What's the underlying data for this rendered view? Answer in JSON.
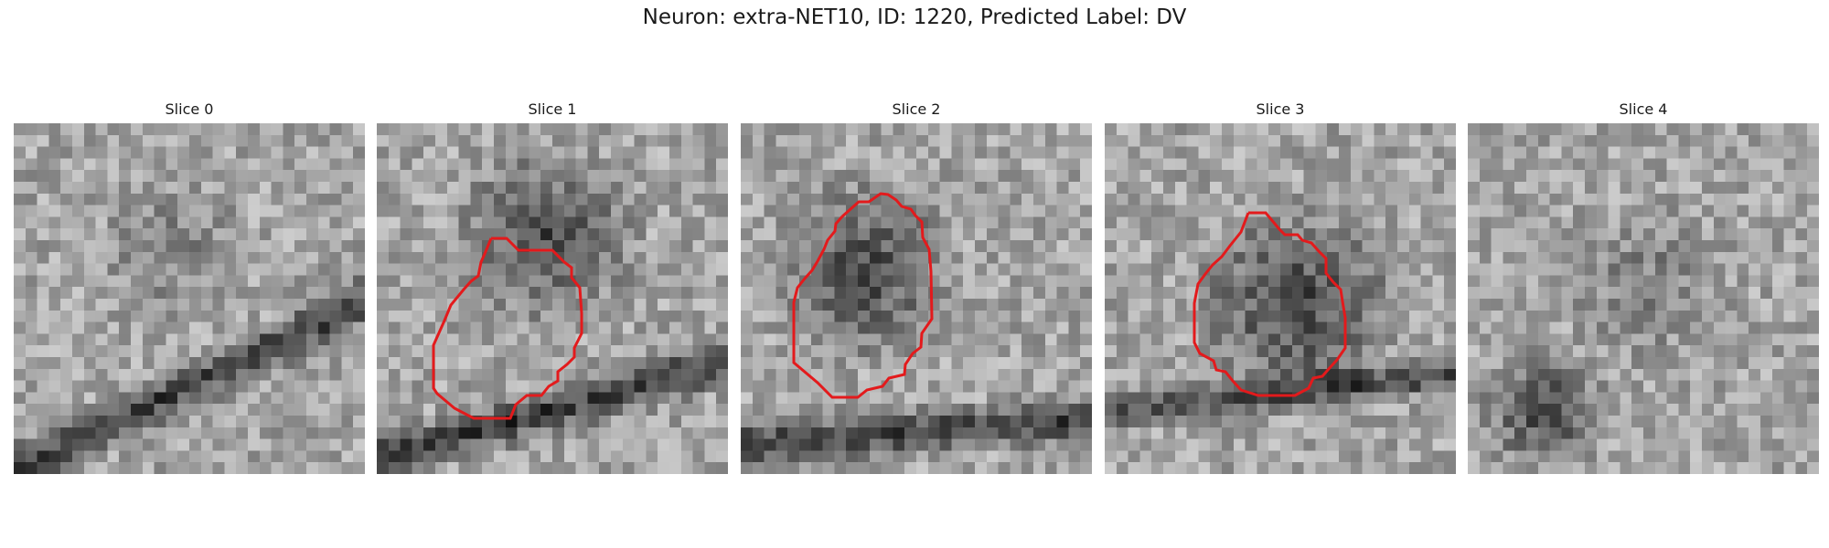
{
  "figure": {
    "title": "Neuron: extra-NET10, ID: 1220, Predicted Label: DV"
  },
  "contour_color": "#e31a1c",
  "panels": [
    {
      "title": "Slice 0",
      "has_contour": false
    },
    {
      "title": "Slice 1",
      "has_contour": true
    },
    {
      "title": "Slice 2",
      "has_contour": true
    },
    {
      "title": "Slice 3",
      "has_contour": true
    },
    {
      "title": "Slice 4",
      "has_contour": false
    }
  ]
}
